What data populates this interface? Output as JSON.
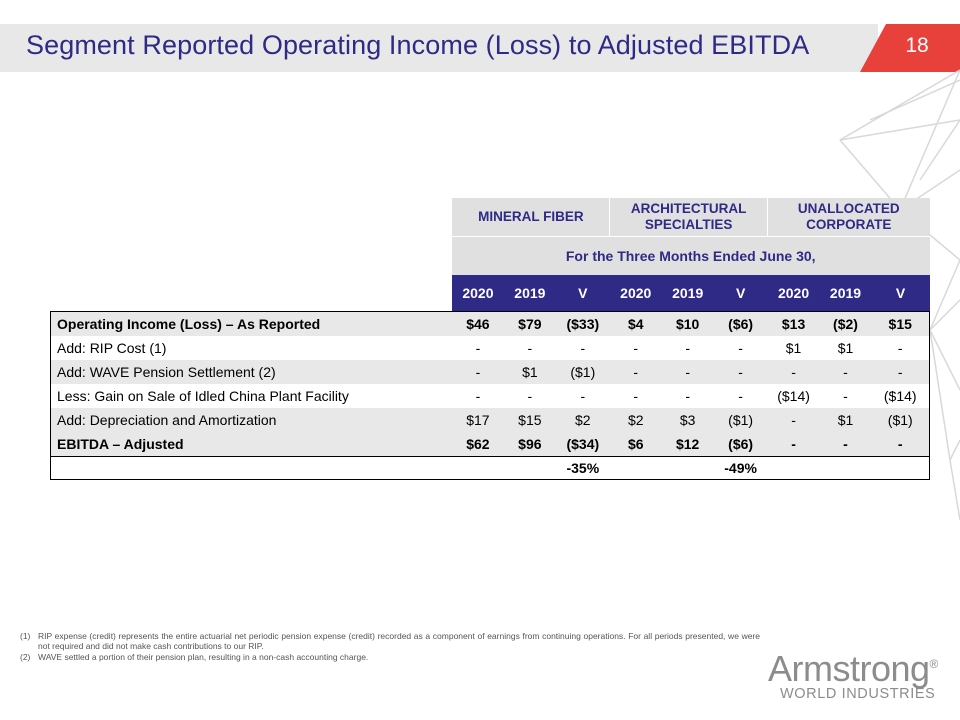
{
  "header": {
    "title": "Segment Reported Operating Income (Loss) to Adjusted EBITDA",
    "page_number": "18"
  },
  "colors": {
    "accent": "#2e2a86",
    "tab_red": "#e8413c",
    "header_grey": "#e0e0e0"
  },
  "table": {
    "segments": [
      "MINERAL FIBER",
      "ARCHITECTURAL SPECIALTIES",
      "UNALLOCATED CORPORATE"
    ],
    "period": "For the Three Months Ended June 30,",
    "columns": [
      "2020",
      "2019",
      "V",
      "2020",
      "2019",
      "V",
      "2020",
      "2019",
      "V"
    ],
    "rows": [
      {
        "label": "Operating Income (Loss) – As Reported",
        "values": [
          "$46",
          "$79",
          "($33)",
          "$4",
          "$10",
          "($6)",
          "$13",
          "($2)",
          "$15"
        ]
      },
      {
        "label": "Add: RIP Cost (1)",
        "values": [
          "-",
          "-",
          "-",
          "-",
          "-",
          "-",
          "$1",
          "$1",
          "-"
        ]
      },
      {
        "label": "Add: WAVE Pension Settlement (2)",
        "values": [
          "-",
          "$1",
          "($1)",
          "-",
          "-",
          "-",
          "-",
          "-",
          "-"
        ]
      },
      {
        "label": "Less: Gain on Sale of Idled China Plant Facility",
        "values": [
          "-",
          "-",
          "-",
          "-",
          "-",
          "-",
          "($14)",
          "-",
          "($14)"
        ]
      },
      {
        "label": "Add: Depreciation and Amortization",
        "values": [
          "$17",
          "$15",
          "$2",
          "$2",
          "$3",
          "($1)",
          "-",
          "$1",
          "($1)"
        ]
      },
      {
        "label": "EBITDA – Adjusted",
        "values": [
          "$62",
          "$96",
          "($34)",
          "$6",
          "$12",
          "($6)",
          "-",
          "-",
          "-"
        ]
      }
    ],
    "pct_change": {
      "mineral_fiber": "-35%",
      "architectural_specialties": "-49%"
    }
  },
  "footnotes": [
    {
      "num": "(1)",
      "text": "RIP expense (credit) represents the entire actuarial net periodic pension expense (credit) recorded as a component of earnings from continuing operations. For all periods presented, we were not required and did not make cash contributions to our RIP."
    },
    {
      "num": "(2)",
      "text": "WAVE settled a portion of their pension plan, resulting in a non-cash accounting charge."
    }
  ],
  "logo": {
    "name": "Armstrong",
    "registered": "®",
    "subtitle": "WORLD INDUSTRIES"
  }
}
